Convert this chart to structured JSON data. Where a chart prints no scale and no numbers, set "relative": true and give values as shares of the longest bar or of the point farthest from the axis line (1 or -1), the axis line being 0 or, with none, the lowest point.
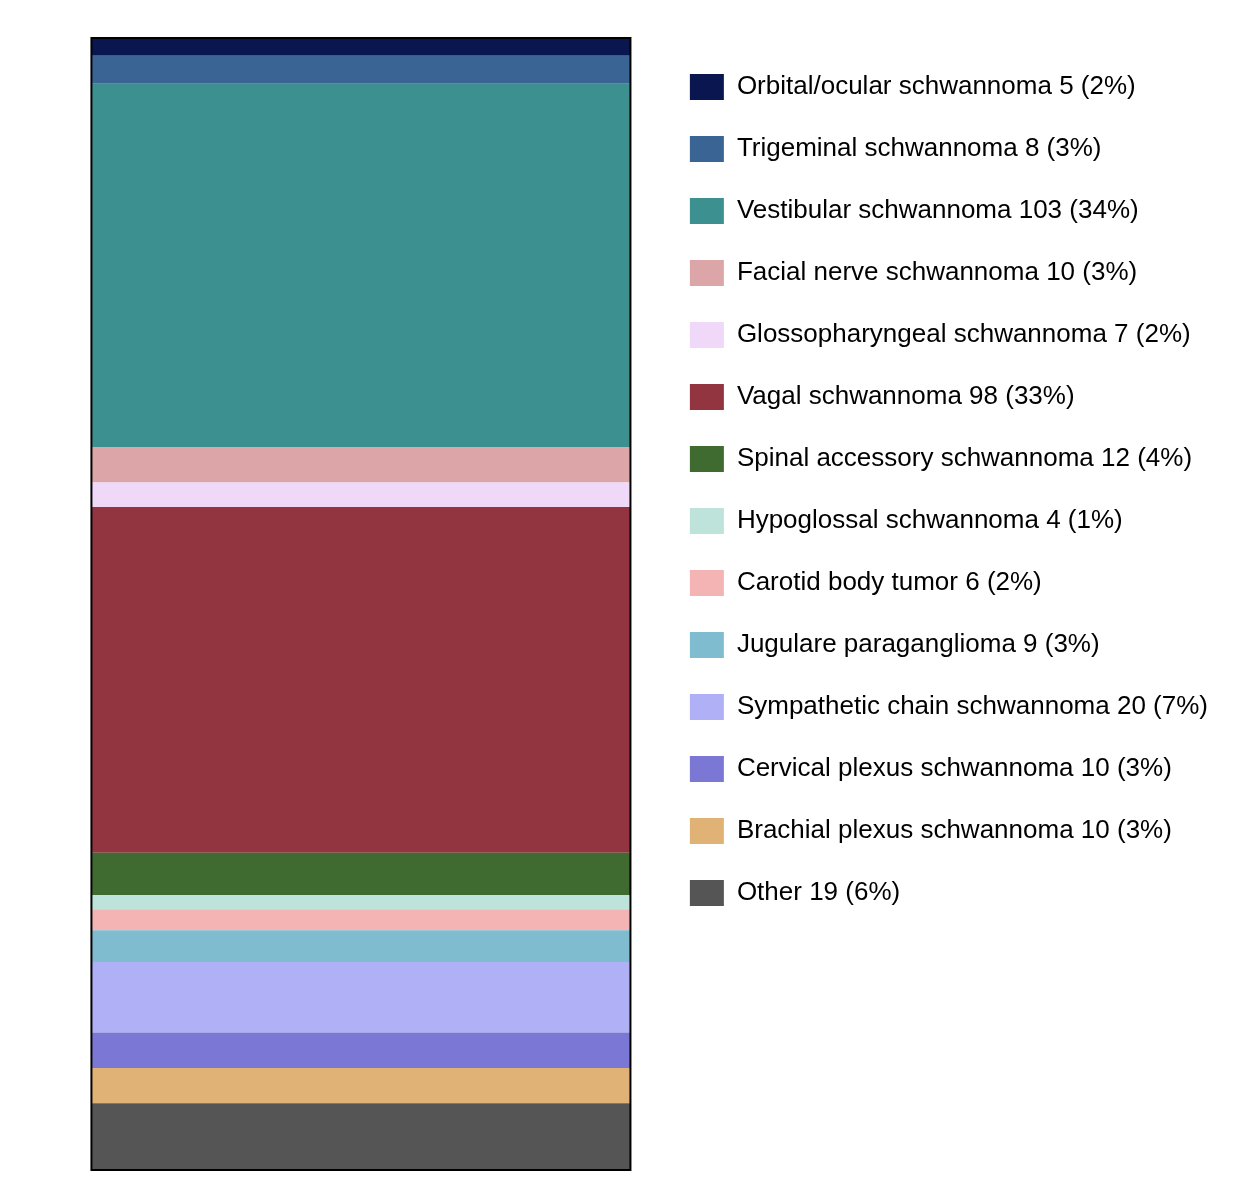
{
  "chart_data": {
    "type": "bar",
    "stacked": true,
    "relative": true,
    "categories": [
      null
    ],
    "legend": "right",
    "tick_labels": false,
    "series": [
      {
        "name": "Other 19 (6%)",
        "color": "#555555",
        "values": [
          0.059
        ]
      },
      {
        "name": "Brachial plexus schwannoma 10 (3%)",
        "color": "#e0b276",
        "values": [
          0.0312
        ]
      },
      {
        "name": "Cervical plexus schwannoma 10 (3%)",
        "color": "#7a78d4",
        "values": [
          0.0312
        ]
      },
      {
        "name": "Sympathetic chain schwannoma 20 (7%)",
        "color": "#b0b0f6",
        "values": [
          0.0623
        ]
      },
      {
        "name": "Jugulare paraganglioma 9 (3%)",
        "color": "#80bcd0",
        "values": [
          0.028
        ]
      },
      {
        "name": "Carotid body tumor 6 (2%)",
        "color": "#f4b4b4",
        "values": [
          0.0187
        ]
      },
      {
        "name": "Hypoglossal schwannoma 4 (1%)",
        "color": "#bde3da",
        "values": [
          0.0125
        ]
      },
      {
        "name": "Spinal accessory schwannoma 12 (4%)",
        "color": "#3f6a30",
        "values": [
          0.0374
        ]
      },
      {
        "name": "Vagal schwannoma 98 (33%)",
        "color": "#923540",
        "values": [
          0.3053
        ]
      },
      {
        "name": "Glossopharyngeal schwannoma 7 (2%)",
        "color": "#f0d8f8",
        "values": [
          0.0218
        ]
      },
      {
        "name": "Facial nerve schwannoma 10 (3%)",
        "color": "#dca6a8",
        "values": [
          0.0312
        ]
      },
      {
        "name": "Vestibular schwannoma 103 (34%)",
        "color": "#3d9090",
        "values": [
          0.3209
        ]
      },
      {
        "name": "Trigeminal schwannoma 8 (3%)",
        "color": "#3a6494",
        "values": [
          0.0249
        ]
      },
      {
        "name": "Orbital/ocular schwannoma 5 (2%)",
        "color": "#0a1650",
        "values": [
          0.0156
        ]
      }
    ]
  }
}
